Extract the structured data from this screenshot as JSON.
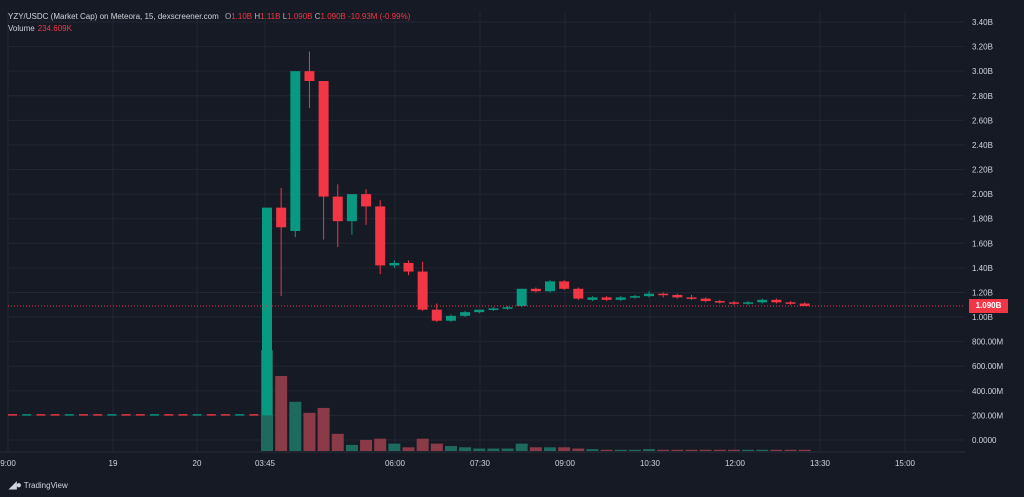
{
  "legend": {
    "title": "YZY/USDC (Market Cap) on Meteora, 15, dexscreener.com",
    "o_label": "O",
    "o_value": "1.10B",
    "h_label": "H",
    "h_value": "1.11B",
    "l_label": "L",
    "l_value": "1.090B",
    "c_label": "C",
    "c_value": "1.090B",
    "change": "-10.93M (-0.99%)",
    "volume_label": "Volume",
    "volume_value": "234.609K"
  },
  "price_tag": "1.090B",
  "watermark": "TradingView",
  "colors": {
    "background": "#161a25",
    "up": "#089981",
    "down": "#f23645",
    "grid": "#232632",
    "axis_text": "#d1d4dc",
    "up_volume": "#1f6a5f",
    "down_volume": "#8b3a47"
  },
  "chart_data": {
    "type": "candlestick",
    "price_axis": {
      "ticks": [
        "3.40B",
        "3.20B",
        "3.00B",
        "2.80B",
        "2.60B",
        "2.40B",
        "2.20B",
        "2.00B",
        "1.80B",
        "1.60B",
        "1.40B",
        "1.20B",
        "1.00B",
        "800.00M",
        "600.00M",
        "400.00M",
        "200.00M",
        "0.0000"
      ],
      "tick_values": [
        3.4,
        3.2,
        3.0,
        2.8,
        2.6,
        2.4,
        2.2,
        2.0,
        1.8,
        1.6,
        1.4,
        1.2,
        1.0,
        0.8,
        0.6,
        0.4,
        0.2,
        0.0
      ],
      "unit": "B",
      "range": [
        0,
        3.4
      ]
    },
    "time_axis": {
      "ticks": [
        "9:00",
        "19",
        "20",
        "03:45",
        "06:00",
        "07:30",
        "09:00",
        "10:30",
        "12:00",
        "13:30",
        "15:00"
      ]
    },
    "last_price": 1.09,
    "volume_scale_max": 1.0,
    "pre_launch": [
      0.205,
      0.205,
      0.205,
      0.205,
      0.205,
      0.205,
      0.205,
      0.205,
      0.205,
      0.205,
      0.205,
      0.205,
      0.205,
      0.205,
      0.205,
      0.205,
      0.205,
      0.205
    ],
    "candles": [
      {
        "o": 0.2,
        "h": 1.89,
        "l": 0.2,
        "c": 1.89,
        "v": 0.82
      },
      {
        "o": 1.89,
        "h": 2.05,
        "l": 1.17,
        "c": 1.73,
        "v": 0.61
      },
      {
        "o": 1.7,
        "h": 3.0,
        "l": 1.65,
        "c": 3.0,
        "v": 0.4
      },
      {
        "o": 3.0,
        "h": 3.16,
        "l": 2.7,
        "c": 2.92,
        "v": 0.31
      },
      {
        "o": 2.92,
        "h": 2.92,
        "l": 1.63,
        "c": 1.98,
        "v": 0.35
      },
      {
        "o": 1.98,
        "h": 2.08,
        "l": 1.57,
        "c": 1.78,
        "v": 0.14
      },
      {
        "o": 1.78,
        "h": 2.0,
        "l": 1.67,
        "c": 2.0,
        "v": 0.05
      },
      {
        "o": 2.0,
        "h": 2.04,
        "l": 1.75,
        "c": 1.9,
        "v": 0.09
      },
      {
        "o": 1.9,
        "h": 1.95,
        "l": 1.35,
        "c": 1.42,
        "v": 0.1
      },
      {
        "o": 1.42,
        "h": 1.46,
        "l": 1.4,
        "c": 1.44,
        "v": 0.06
      },
      {
        "o": 1.44,
        "h": 1.46,
        "l": 1.34,
        "c": 1.37,
        "v": 0.03
      },
      {
        "o": 1.37,
        "h": 1.45,
        "l": 1.05,
        "c": 1.06,
        "v": 0.1
      },
      {
        "o": 1.06,
        "h": 1.11,
        "l": 0.96,
        "c": 0.97,
        "v": 0.06
      },
      {
        "o": 0.97,
        "h": 1.02,
        "l": 0.96,
        "c": 1.01,
        "v": 0.04
      },
      {
        "o": 1.01,
        "h": 1.05,
        "l": 1.0,
        "c": 1.04,
        "v": 0.03
      },
      {
        "o": 1.04,
        "h": 1.06,
        "l": 1.03,
        "c": 1.06,
        "v": 0.02
      },
      {
        "o": 1.06,
        "h": 1.08,
        "l": 1.05,
        "c": 1.07,
        "v": 0.02
      },
      {
        "o": 1.07,
        "h": 1.09,
        "l": 1.06,
        "c": 1.08,
        "v": 0.02
      },
      {
        "o": 1.09,
        "h": 1.23,
        "l": 1.08,
        "c": 1.23,
        "v": 0.06
      },
      {
        "o": 1.23,
        "h": 1.24,
        "l": 1.2,
        "c": 1.21,
        "v": 0.03
      },
      {
        "o": 1.21,
        "h": 1.3,
        "l": 1.2,
        "c": 1.29,
        "v": 0.03
      },
      {
        "o": 1.29,
        "h": 1.3,
        "l": 1.22,
        "c": 1.23,
        "v": 0.03
      },
      {
        "o": 1.23,
        "h": 1.24,
        "l": 1.14,
        "c": 1.15,
        "v": 0.02
      },
      {
        "o": 1.14,
        "h": 1.17,
        "l": 1.13,
        "c": 1.16,
        "v": 0.015
      },
      {
        "o": 1.16,
        "h": 1.17,
        "l": 1.13,
        "c": 1.14,
        "v": 0.01
      },
      {
        "o": 1.14,
        "h": 1.17,
        "l": 1.13,
        "c": 1.16,
        "v": 0.01
      },
      {
        "o": 1.16,
        "h": 1.18,
        "l": 1.15,
        "c": 1.17,
        "v": 0.01
      },
      {
        "o": 1.17,
        "h": 1.21,
        "l": 1.16,
        "c": 1.19,
        "v": 0.015
      },
      {
        "o": 1.19,
        "h": 1.2,
        "l": 1.16,
        "c": 1.18,
        "v": 0.01
      },
      {
        "o": 1.18,
        "h": 1.19,
        "l": 1.15,
        "c": 1.16,
        "v": 0.01
      },
      {
        "o": 1.16,
        "h": 1.18,
        "l": 1.14,
        "c": 1.15,
        "v": 0.01
      },
      {
        "o": 1.15,
        "h": 1.16,
        "l": 1.12,
        "c": 1.13,
        "v": 0.01
      },
      {
        "o": 1.13,
        "h": 1.14,
        "l": 1.11,
        "c": 1.12,
        "v": 0.01
      },
      {
        "o": 1.12,
        "h": 1.13,
        "l": 1.1,
        "c": 1.11,
        "v": 0.01
      },
      {
        "o": 1.11,
        "h": 1.13,
        "l": 1.1,
        "c": 1.12,
        "v": 0.01
      },
      {
        "o": 1.12,
        "h": 1.15,
        "l": 1.11,
        "c": 1.14,
        "v": 0.01
      },
      {
        "o": 1.14,
        "h": 1.15,
        "l": 1.11,
        "c": 1.12,
        "v": 0.01
      },
      {
        "o": 1.12,
        "h": 1.13,
        "l": 1.1,
        "c": 1.11,
        "v": 0.01
      },
      {
        "o": 1.11,
        "h": 1.12,
        "l": 1.09,
        "c": 1.09,
        "v": 0.01
      }
    ]
  }
}
